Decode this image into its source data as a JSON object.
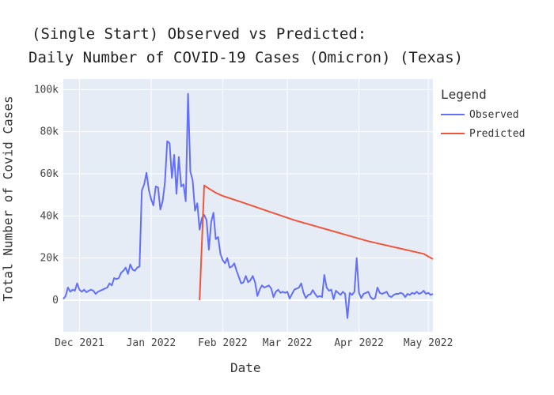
{
  "chart_data": {
    "type": "line",
    "title_lines": [
      "(Single Start) Observed vs Predicted:",
      "Daily Number of COVID-19 Cases (Omicron) (Texas)"
    ],
    "xlabel": "Date",
    "ylabel": "Total Number of Covid Cases",
    "ylim": [
      -15000,
      105000
    ],
    "xlim": [
      "2021-11-24",
      "2022-05-03"
    ],
    "grid": true,
    "legend_placement": "right",
    "legend_title": "Legend",
    "x_ticks": [
      {
        "date": "2021-12-01",
        "label": "Dec 2021"
      },
      {
        "date": "2022-01-01",
        "label": "Jan 2022"
      },
      {
        "date": "2022-02-01",
        "label": "Feb 2022"
      },
      {
        "date": "2022-03-01",
        "label": "Mar 2022"
      },
      {
        "date": "2022-04-01",
        "label": "Apr 2022"
      },
      {
        "date": "2022-05-01",
        "label": "May 2022"
      }
    ],
    "y_ticks": [
      {
        "value": 0,
        "label": "0"
      },
      {
        "value": 20000,
        "label": "20k"
      },
      {
        "value": 40000,
        "label": "40k"
      },
      {
        "value": 60000,
        "label": "60k"
      },
      {
        "value": 80000,
        "label": "80k"
      },
      {
        "value": 100000,
        "label": "100k"
      }
    ],
    "series": [
      {
        "name": "Observed",
        "color": "#636efa",
        "points": [
          [
            "2021-11-24",
            600
          ],
          [
            "2021-11-25",
            2000
          ],
          [
            "2021-11-26",
            6000
          ],
          [
            "2021-11-27",
            4000
          ],
          [
            "2021-11-28",
            5000
          ],
          [
            "2021-11-29",
            4500
          ],
          [
            "2021-11-30",
            8000
          ],
          [
            "2021-12-01",
            5000
          ],
          [
            "2021-12-02",
            4000
          ],
          [
            "2021-12-03",
            5000
          ],
          [
            "2021-12-04",
            3800
          ],
          [
            "2021-12-05",
            4500
          ],
          [
            "2021-12-06",
            5000
          ],
          [
            "2021-12-07",
            4500
          ],
          [
            "2021-12-08",
            3000
          ],
          [
            "2021-12-09",
            4000
          ],
          [
            "2021-12-10",
            4500
          ],
          [
            "2021-12-11",
            5000
          ],
          [
            "2021-12-12",
            5500
          ],
          [
            "2021-12-13",
            6000
          ],
          [
            "2021-12-14",
            8000
          ],
          [
            "2021-12-15",
            7000
          ],
          [
            "2021-12-16",
            10500
          ],
          [
            "2021-12-17",
            10000
          ],
          [
            "2021-12-18",
            10500
          ],
          [
            "2021-12-19",
            13000
          ],
          [
            "2021-12-20",
            14000
          ],
          [
            "2021-12-21",
            15500
          ],
          [
            "2021-12-22",
            12500
          ],
          [
            "2021-12-23",
            17000
          ],
          [
            "2021-12-24",
            14500
          ],
          [
            "2021-12-25",
            14000
          ],
          [
            "2021-12-26",
            15500
          ],
          [
            "2021-12-27",
            16000
          ],
          [
            "2021-12-28",
            52000
          ],
          [
            "2021-12-29",
            55000
          ],
          [
            "2021-12-30",
            60500
          ],
          [
            "2021-12-31",
            52500
          ],
          [
            "2022-01-01",
            48000
          ],
          [
            "2022-01-02",
            45000
          ],
          [
            "2022-01-03",
            54000
          ],
          [
            "2022-01-04",
            53500
          ],
          [
            "2022-01-05",
            43000
          ],
          [
            "2022-01-06",
            47000
          ],
          [
            "2022-01-07",
            56000
          ],
          [
            "2022-01-08",
            75500
          ],
          [
            "2022-01-09",
            74500
          ],
          [
            "2022-01-10",
            58000
          ],
          [
            "2022-01-11",
            69000
          ],
          [
            "2022-01-12",
            50500
          ],
          [
            "2022-01-13",
            68000
          ],
          [
            "2022-01-14",
            54000
          ],
          [
            "2022-01-15",
            55000
          ],
          [
            "2022-01-16",
            47000
          ],
          [
            "2022-01-17",
            98000
          ],
          [
            "2022-01-18",
            61000
          ],
          [
            "2022-01-19",
            57000
          ],
          [
            "2022-01-20",
            42500
          ],
          [
            "2022-01-21",
            46000
          ],
          [
            "2022-01-22",
            33500
          ],
          [
            "2022-01-23",
            39000
          ],
          [
            "2022-01-24",
            40500
          ],
          [
            "2022-01-25",
            38000
          ],
          [
            "2022-01-26",
            24000
          ],
          [
            "2022-01-27",
            37000
          ],
          [
            "2022-01-28",
            41500
          ],
          [
            "2022-01-29",
            29000
          ],
          [
            "2022-01-30",
            30000
          ],
          [
            "2022-01-31",
            22000
          ],
          [
            "2022-02-01",
            19000
          ],
          [
            "2022-02-02",
            17500
          ],
          [
            "2022-02-03",
            20000
          ],
          [
            "2022-02-04",
            15500
          ],
          [
            "2022-02-05",
            16000
          ],
          [
            "2022-02-06",
            17500
          ],
          [
            "2022-02-07",
            14000
          ],
          [
            "2022-02-08",
            11000
          ],
          [
            "2022-02-09",
            8000
          ],
          [
            "2022-02-10",
            8500
          ],
          [
            "2022-02-11",
            11500
          ],
          [
            "2022-02-12",
            8500
          ],
          [
            "2022-02-13",
            9500
          ],
          [
            "2022-02-14",
            11500
          ],
          [
            "2022-02-15",
            8500
          ],
          [
            "2022-02-16",
            2000
          ],
          [
            "2022-02-17",
            5000
          ],
          [
            "2022-02-18",
            7000
          ],
          [
            "2022-02-19",
            6000
          ],
          [
            "2022-02-20",
            6500
          ],
          [
            "2022-02-21",
            7000
          ],
          [
            "2022-02-22",
            5500
          ],
          [
            "2022-02-23",
            1500
          ],
          [
            "2022-02-24",
            4000
          ],
          [
            "2022-02-25",
            5000
          ],
          [
            "2022-02-26",
            3500
          ],
          [
            "2022-02-27",
            4000
          ],
          [
            "2022-02-28",
            3500
          ],
          [
            "2022-03-01",
            4000
          ],
          [
            "2022-03-02",
            800
          ],
          [
            "2022-03-03",
            3000
          ],
          [
            "2022-03-04",
            5000
          ],
          [
            "2022-03-05",
            5500
          ],
          [
            "2022-03-06",
            6000
          ],
          [
            "2022-03-07",
            8000
          ],
          [
            "2022-03-08",
            3500
          ],
          [
            "2022-03-09",
            1000
          ],
          [
            "2022-03-10",
            2500
          ],
          [
            "2022-03-11",
            2800
          ],
          [
            "2022-03-12",
            4800
          ],
          [
            "2022-03-13",
            3000
          ],
          [
            "2022-03-14",
            1500
          ],
          [
            "2022-03-15",
            2000
          ],
          [
            "2022-03-16",
            1500
          ],
          [
            "2022-03-17",
            12000
          ],
          [
            "2022-03-18",
            6000
          ],
          [
            "2022-03-19",
            4500
          ],
          [
            "2022-03-20",
            5000
          ],
          [
            "2022-03-21",
            500
          ],
          [
            "2022-03-22",
            4500
          ],
          [
            "2022-03-23",
            3500
          ],
          [
            "2022-03-24",
            2500
          ],
          [
            "2022-03-25",
            4000
          ],
          [
            "2022-03-26",
            3000
          ],
          [
            "2022-03-27",
            -8500
          ],
          [
            "2022-03-28",
            3500
          ],
          [
            "2022-03-29",
            2500
          ],
          [
            "2022-03-30",
            4000
          ],
          [
            "2022-03-31",
            20000
          ],
          [
            "2022-04-01",
            3500
          ],
          [
            "2022-04-02",
            1000
          ],
          [
            "2022-04-03",
            3000
          ],
          [
            "2022-04-04",
            3500
          ],
          [
            "2022-04-05",
            4000
          ],
          [
            "2022-04-06",
            1500
          ],
          [
            "2022-04-07",
            500
          ],
          [
            "2022-04-08",
            1000
          ],
          [
            "2022-04-09",
            6000
          ],
          [
            "2022-04-10",
            3500
          ],
          [
            "2022-04-11",
            3000
          ],
          [
            "2022-04-12",
            3500
          ],
          [
            "2022-04-13",
            4000
          ],
          [
            "2022-04-14",
            2000
          ],
          [
            "2022-04-15",
            1500
          ],
          [
            "2022-04-16",
            2500
          ],
          [
            "2022-04-17",
            3000
          ],
          [
            "2022-04-18",
            3000
          ],
          [
            "2022-04-19",
            3500
          ],
          [
            "2022-04-20",
            3000
          ],
          [
            "2022-04-21",
            1500
          ],
          [
            "2022-04-22",
            3000
          ],
          [
            "2022-04-23",
            2500
          ],
          [
            "2022-04-24",
            3500
          ],
          [
            "2022-04-25",
            3000
          ],
          [
            "2022-04-26",
            4000
          ],
          [
            "2022-04-27",
            3000
          ],
          [
            "2022-04-28",
            3500
          ],
          [
            "2022-04-29",
            4500
          ],
          [
            "2022-04-30",
            3000
          ],
          [
            "2022-05-01",
            3500
          ],
          [
            "2022-05-02",
            2500
          ],
          [
            "2022-05-03",
            3000
          ]
        ]
      },
      {
        "name": "Predicted",
        "color": "#ef553b",
        "points": [
          [
            "2022-01-22",
            0
          ],
          [
            "2022-01-24",
            54500
          ],
          [
            "2022-01-26",
            53000
          ],
          [
            "2022-01-29",
            51000
          ],
          [
            "2022-02-01",
            49500
          ],
          [
            "2022-02-08",
            47000
          ],
          [
            "2022-02-16",
            44000
          ],
          [
            "2022-02-24",
            41000
          ],
          [
            "2022-03-04",
            38000
          ],
          [
            "2022-03-12",
            35500
          ],
          [
            "2022-03-20",
            33000
          ],
          [
            "2022-03-28",
            30500
          ],
          [
            "2022-04-05",
            28000
          ],
          [
            "2022-04-13",
            26000
          ],
          [
            "2022-04-21",
            24000
          ],
          [
            "2022-04-29",
            22000
          ],
          [
            "2022-05-03",
            19500
          ]
        ]
      }
    ]
  }
}
